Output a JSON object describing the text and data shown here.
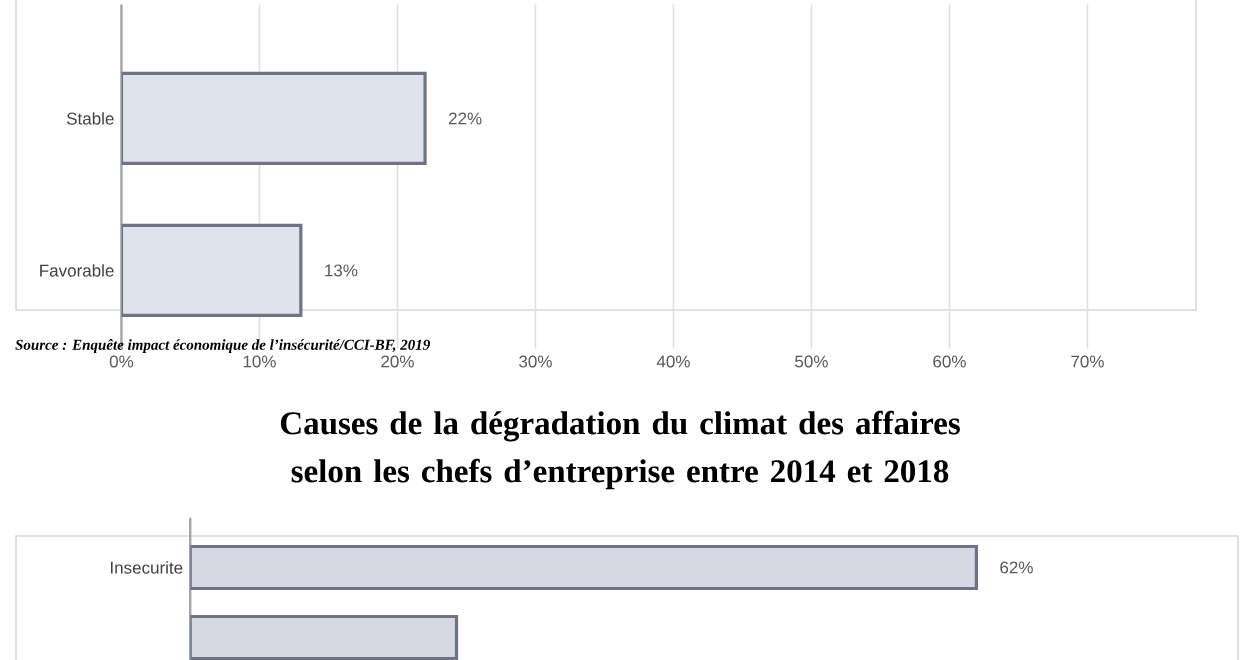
{
  "chart_data": [
    {
      "type": "bar",
      "orientation": "horizontal",
      "categories": [
        "Stable",
        "Favorable"
      ],
      "values": [
        22,
        13
      ],
      "value_labels": [
        "22%",
        "13%"
      ],
      "color": "#dfe3ec",
      "xlim": [
        0,
        70
      ],
      "xticks": [
        {
          "value": 0,
          "label": "0%"
        },
        {
          "value": 10,
          "label": "10%"
        },
        {
          "value": 20,
          "label": "20%"
        },
        {
          "value": 30,
          "label": "30%"
        },
        {
          "value": 40,
          "label": "40%"
        },
        {
          "value": 50,
          "label": "50%"
        },
        {
          "value": 60,
          "label": "60%"
        },
        {
          "value": 70,
          "label": "70%"
        }
      ],
      "grid": "x",
      "annotations": [
        "Source : Enquête impact économique de l’insécurité/CCI-BF, 2019"
      ]
    },
    {
      "type": "bar",
      "orientation": "horizontal",
      "title": "Causes de la dégradation du climat des affaires selon les chefs d’entreprise entre 2014 et 2018",
      "categories": [
        "Insecurite",
        null
      ],
      "values": [
        62,
        21
      ],
      "value_labels": [
        "62%",
        null
      ],
      "color": "#d6d9e2"
    }
  ]
}
